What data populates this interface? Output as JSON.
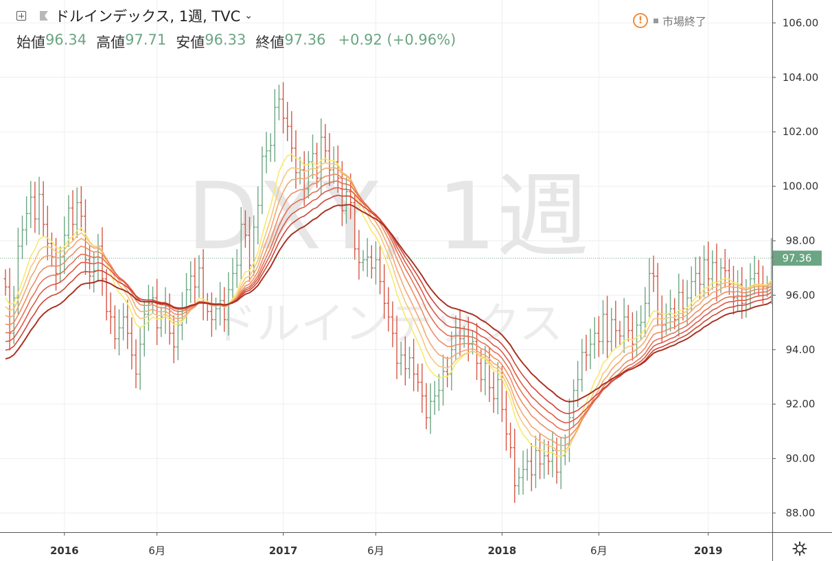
{
  "header": {
    "title": "ドルインデックス, 1週, TVC",
    "ohlc": [
      {
        "label": "始値",
        "value": "96.34"
      },
      {
        "label": "高値",
        "value": "97.71"
      },
      {
        "label": "安値",
        "value": "96.33"
      },
      {
        "label": "終値",
        "value": "97.36"
      }
    ],
    "change": "+0.92 (+0.96%)",
    "status": "市場終了"
  },
  "colors": {
    "up": "#6ba583",
    "down": "#d75442",
    "grid": "#eeeeee",
    "price_tag": "#6ba583",
    "ribbon": [
      "#f7e96b",
      "#f5c77a",
      "#f2a870",
      "#ec8c62",
      "#e57154",
      "#dc5846",
      "#cf4335",
      "#a83222"
    ]
  },
  "chart_data": {
    "type": "ohlc-bar",
    "symbol": "DXY",
    "interval": "1週",
    "watermark": [
      "DXY, 1週",
      "ドルインデックス"
    ],
    "ylim": [
      87.0,
      107.0
    ],
    "y_ticks": [
      "88.00",
      "90.00",
      "92.00",
      "94.00",
      "96.00",
      "98.00",
      "100.00",
      "102.00",
      "104.00",
      "106.00"
    ],
    "x_ticks": [
      "2016",
      "6月",
      "2017",
      "6月",
      "2018",
      "6月",
      "2019"
    ],
    "last_price": "97.36",
    "grid": true,
    "closes": [
      96.3,
      94.6,
      95.9,
      97.8,
      98.4,
      99.0,
      99.6,
      98.8,
      99.7,
      98.6,
      97.9,
      97.4,
      96.8,
      97.4,
      98.2,
      99.2,
      98.6,
      99.4,
      98.9,
      97.3,
      96.7,
      96.9,
      97.8,
      96.6,
      95.4,
      95.2,
      94.4,
      94.8,
      95.2,
      94.6,
      93.8,
      93.1,
      94.2,
      95.3,
      95.7,
      95.9,
      94.8,
      95.2,
      95.6,
      94.6,
      94.1,
      94.9,
      95.5,
      96.2,
      96.7,
      96.3,
      97.0,
      95.7,
      95.4,
      95.1,
      95.5,
      95.8,
      95.1,
      96.2,
      96.8,
      97.1,
      98.6,
      98.2,
      97.1,
      98.5,
      99.3,
      101.1,
      101.3,
      101.5,
      102.9,
      103.2,
      102.5,
      102.2,
      101.4,
      100.5,
      100.6,
      99.9,
      100.9,
      101.2,
      100.3,
      101.8,
      101.3,
      100.6,
      100.9,
      100.3,
      99.1,
      99.8,
      99.4,
      97.7,
      97.2,
      97.3,
      97.4,
      97.0,
      97.3,
      96.5,
      95.7,
      95.2,
      94.6,
      93.5,
      93.8,
      93.3,
      93.7,
      93.1,
      92.8,
      92.3,
      91.5,
      92.1,
      92.3,
      92.5,
      93.2,
      93.1,
      94.0,
      94.8,
      94.4,
      94.5,
      94.2,
      94.3,
      93.5,
      92.9,
      93.5,
      92.6,
      92.2,
      92.9,
      91.8,
      90.9,
      90.4,
      89.0,
      89.3,
      89.6,
      89.9,
      89.4,
      90.3,
      89.8,
      90.1,
      89.9,
      90.3,
      89.5,
      90.1,
      90.5,
      91.5,
      92.5,
      92.9,
      93.9,
      93.8,
      94.2,
      94.6,
      94.3,
      95.3,
      94.3,
      95.1,
      94.7,
      94.5,
      95.2,
      94.7,
      94.2,
      94.9,
      95.0,
      95.7,
      96.8,
      96.7,
      95.3,
      94.9,
      95.3,
      95.5,
      95.1,
      96.1,
      95.5,
      95.9,
      96.5,
      96.8,
      96.4,
      97.3,
      96.6,
      97.2,
      96.4,
      97.0,
      96.9,
      96.4,
      95.9,
      96.4,
      95.7,
      96.0,
      96.6,
      96.8,
      96.4,
      96.3,
      96.3,
      97.4
    ]
  }
}
